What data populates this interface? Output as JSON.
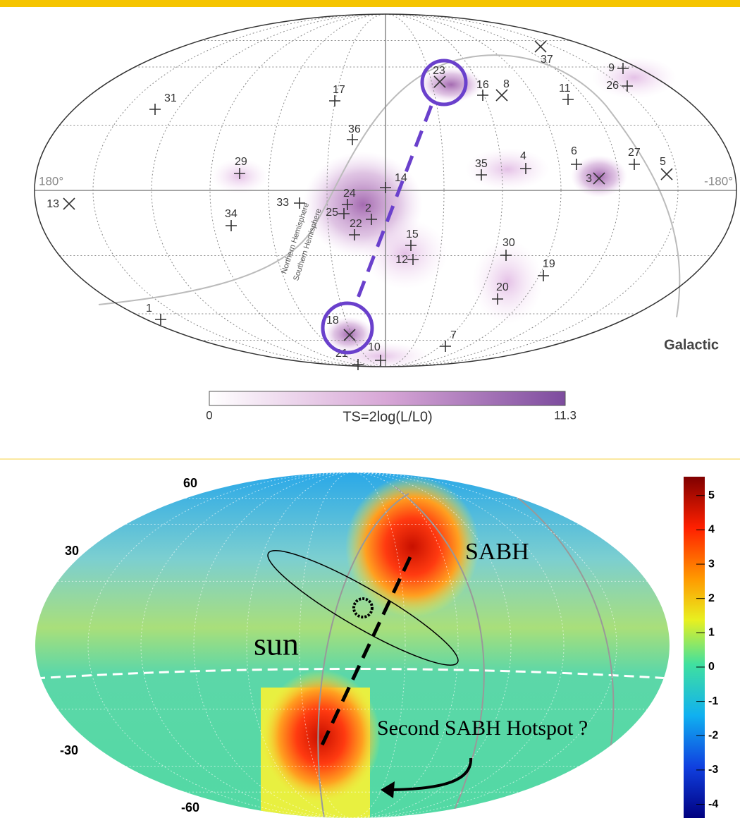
{
  "top": {
    "left_label": "180°",
    "right_label": "-180°",
    "frame_label": "Galactic",
    "hemisphere_labels": [
      "Northern Hemisphere",
      "Southern Hemisphere"
    ],
    "events": [
      "31",
      "17",
      "36",
      "29",
      "13",
      "33",
      "34",
      "24",
      "25",
      "2",
      "22",
      "14",
      "15",
      "12",
      "1",
      "18",
      "10",
      "21",
      "7",
      "23",
      "16",
      "8",
      "37",
      "9",
      "26",
      "11",
      "35",
      "4",
      "6",
      "27",
      "5",
      "3",
      "30",
      "19",
      "20"
    ],
    "colorbar": {
      "label": "TS=2log(L/L0)",
      "min": 0,
      "max": 11.3
    }
  },
  "bottom": {
    "lat_labels": [
      "60",
      "30",
      "-30",
      "-60"
    ],
    "annotations": {
      "sabh": "SABH",
      "sun": "sun",
      "second": "Second SABH Hotspot ?"
    },
    "colorbar": {
      "lim": [
        -4.4,
        5.55
      ],
      "ticks": [
        5,
        4,
        3,
        2,
        1,
        0,
        -1,
        -2,
        -3,
        -4
      ]
    }
  }
}
